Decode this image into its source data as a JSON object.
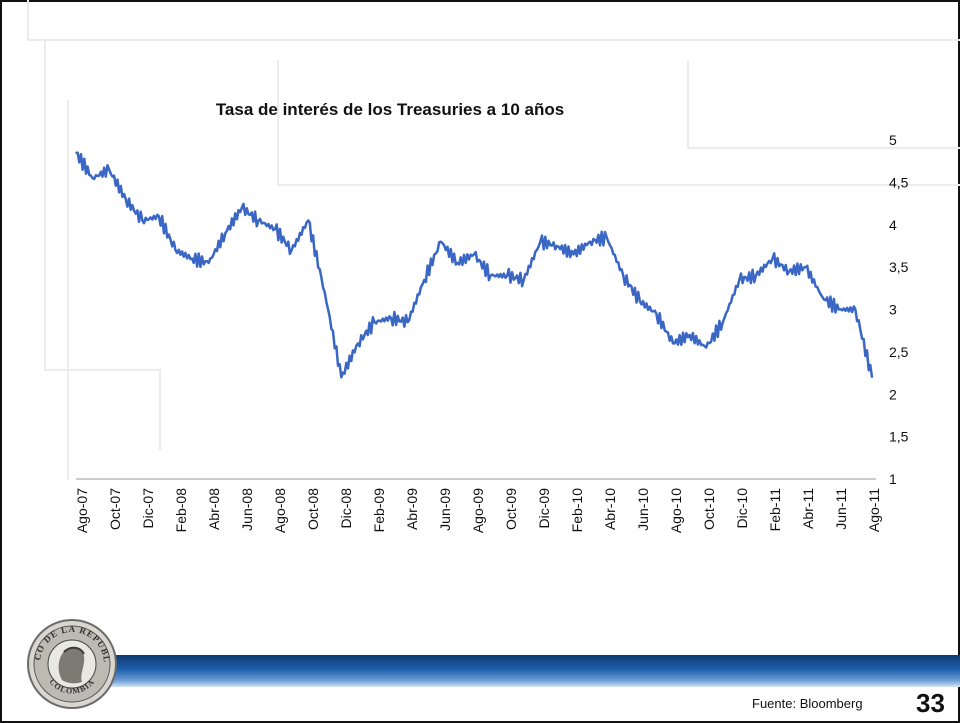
{
  "slide": {
    "source_label": "Fuente: Bloomberg",
    "page_number": "33",
    "logo_text_top": "BANCO DE LA REPUBLICA",
    "logo_text_bottom": "COLOMBIA"
  },
  "chart_data": {
    "type": "line",
    "title": "Tasa de interés de los Treasuries a 10 años",
    "xlabel": "",
    "ylabel": "",
    "ylim": [
      1,
      5
    ],
    "y_ticks": [
      "1",
      "1,5",
      "2",
      "2,5",
      "3",
      "3,5",
      "4",
      "4,5",
      "5"
    ],
    "y_axis_side": "right",
    "grid": false,
    "legend": "none",
    "line_color": "#3a66c4",
    "x_tick_labels": [
      "Ago-07",
      "Oct-07",
      "Dic-07",
      "Feb-08",
      "Abr-08",
      "Jun-08",
      "Ago-08",
      "Oct-08",
      "Dic-08",
      "Feb-09",
      "Abr-09",
      "Jun-09",
      "Ago-09",
      "Oct-09",
      "Dic-09",
      "Feb-10",
      "Abr-10",
      "Jun-10",
      "Ago-10",
      "Oct-10",
      "Dic-10",
      "Feb-11",
      "Abr-11",
      "Jun-11",
      "Ago-11"
    ],
    "series": [
      {
        "x": [
          "Ago-07",
          "Sep-07",
          "Oct-07",
          "Nov-07",
          "Dic-07",
          "Ene-08",
          "Feb-08",
          "Mar-08",
          "Abr-08",
          "May-08",
          "Jun-08",
          "Jul-08",
          "Ago-08",
          "Sep-08",
          "Oct-08",
          "Nov-08",
          "Dic-08",
          "Ene-09",
          "Feb-09",
          "Mar-09",
          "Abr-09",
          "May-09",
          "Jun-09",
          "Jul-09",
          "Ago-09",
          "Sep-09",
          "Oct-09",
          "Nov-09",
          "Dic-09",
          "Ene-10",
          "Feb-10",
          "Mar-10",
          "Abr-10",
          "May-10",
          "Jun-10",
          "Jul-10",
          "Ago-10",
          "Sep-10",
          "Oct-10",
          "Nov-10",
          "Dic-10",
          "Ene-11",
          "Feb-11",
          "Mar-11",
          "Abr-11",
          "May-11",
          "Jun-11",
          "Jul-11",
          "Ago-11"
        ],
        "values": [
          4.85,
          4.55,
          4.65,
          4.3,
          4.05,
          4.1,
          3.7,
          3.6,
          3.55,
          3.9,
          4.2,
          4.05,
          3.95,
          3.7,
          4.05,
          3.2,
          2.2,
          2.6,
          2.85,
          2.9,
          2.85,
          3.35,
          3.8,
          3.55,
          3.65,
          3.4,
          3.4,
          3.35,
          3.8,
          3.75,
          3.65,
          3.8,
          3.85,
          3.4,
          3.1,
          2.95,
          2.6,
          2.7,
          2.55,
          2.85,
          3.35,
          3.4,
          3.6,
          3.45,
          3.5,
          3.15,
          3.0,
          3.0,
          2.2
        ]
      }
    ]
  }
}
